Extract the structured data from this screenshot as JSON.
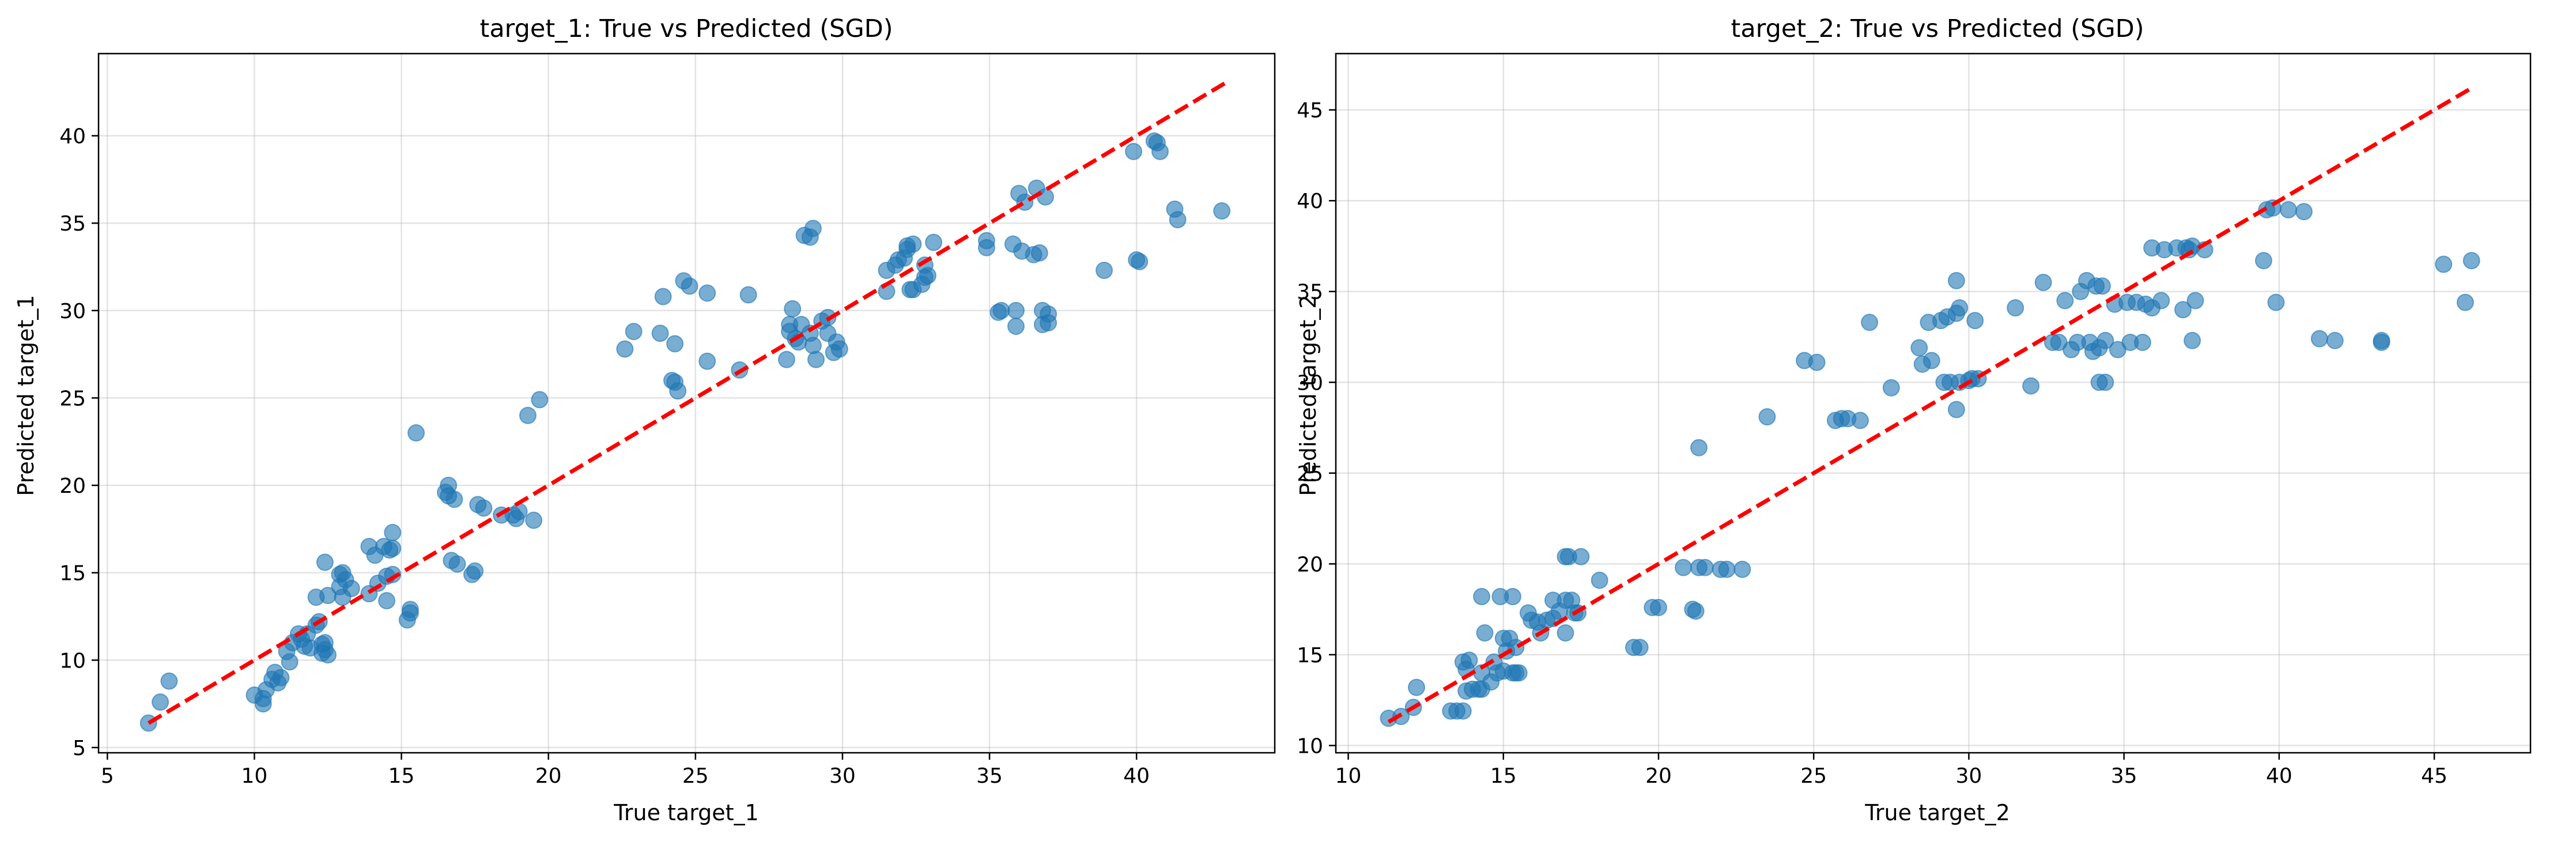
{
  "chart_data": [
    {
      "type": "scatter",
      "title": "target_1: True vs Predicted (SGD)",
      "xlabel": "True target_1",
      "ylabel": "Predicted target_1",
      "xlim": [
        4.7,
        44.7
      ],
      "ylim": [
        4.7,
        44.7
      ],
      "xticks": [
        5,
        10,
        15,
        20,
        25,
        30,
        35,
        40
      ],
      "yticks": [
        5,
        10,
        15,
        20,
        25,
        30,
        35,
        40
      ],
      "grid": true,
      "point_color": "#1f77b4",
      "line_color": "#ff0000",
      "reference_line": {
        "from": [
          6.4,
          6.4
        ],
        "to": [
          43.0,
          43.0
        ],
        "style": "dashed"
      },
      "points": [
        [
          6.4,
          6.4
        ],
        [
          6.8,
          7.6
        ],
        [
          7.1,
          8.8
        ],
        [
          10.0,
          8.0
        ],
        [
          10.3,
          7.5
        ],
        [
          10.3,
          7.8
        ],
        [
          10.4,
          8.3
        ],
        [
          10.6,
          8.9
        ],
        [
          10.7,
          9.3
        ],
        [
          10.8,
          8.7
        ],
        [
          10.9,
          9.0
        ],
        [
          11.1,
          10.5
        ],
        [
          11.2,
          9.9
        ],
        [
          11.3,
          11.0
        ],
        [
          11.5,
          11.5
        ],
        [
          11.6,
          11.2
        ],
        [
          11.7,
          10.8
        ],
        [
          11.8,
          11.5
        ],
        [
          11.9,
          10.7
        ],
        [
          12.1,
          12.0
        ],
        [
          12.1,
          13.6
        ],
        [
          12.2,
          12.2
        ],
        [
          12.3,
          10.9
        ],
        [
          12.3,
          10.4
        ],
        [
          12.4,
          10.6
        ],
        [
          12.4,
          11.0
        ],
        [
          12.4,
          15.6
        ],
        [
          12.5,
          10.3
        ],
        [
          12.5,
          13.7
        ],
        [
          12.9,
          14.9
        ],
        [
          12.9,
          14.2
        ],
        [
          13.0,
          13.6
        ],
        [
          13.0,
          15.0
        ],
        [
          13.1,
          14.6
        ],
        [
          13.3,
          14.1
        ],
        [
          13.9,
          13.8
        ],
        [
          13.9,
          16.5
        ],
        [
          14.1,
          16.0
        ],
        [
          14.2,
          14.4
        ],
        [
          14.4,
          16.5
        ],
        [
          14.5,
          14.8
        ],
        [
          14.5,
          13.4
        ],
        [
          14.6,
          16.3
        ],
        [
          14.7,
          16.4
        ],
        [
          14.7,
          14.9
        ],
        [
          14.7,
          17.3
        ],
        [
          15.2,
          12.3
        ],
        [
          15.3,
          12.7
        ],
        [
          15.3,
          12.9
        ],
        [
          15.5,
          23.0
        ],
        [
          16.5,
          19.6
        ],
        [
          16.6,
          19.4
        ],
        [
          16.6,
          20.0
        ],
        [
          16.7,
          15.7
        ],
        [
          16.8,
          19.2
        ],
        [
          16.9,
          15.5
        ],
        [
          17.4,
          14.9
        ],
        [
          17.5,
          15.1
        ],
        [
          17.6,
          18.9
        ],
        [
          17.8,
          18.7
        ],
        [
          18.4,
          18.3
        ],
        [
          18.8,
          18.3
        ],
        [
          18.9,
          18.1
        ],
        [
          19.0,
          18.5
        ],
        [
          19.3,
          24.0
        ],
        [
          19.5,
          18.0
        ],
        [
          19.7,
          24.9
        ],
        [
          22.6,
          27.8
        ],
        [
          22.9,
          28.8
        ],
        [
          23.8,
          28.7
        ],
        [
          23.9,
          30.8
        ],
        [
          24.2,
          26.0
        ],
        [
          24.3,
          25.9
        ],
        [
          24.3,
          28.1
        ],
        [
          24.4,
          25.4
        ],
        [
          24.6,
          31.7
        ],
        [
          24.8,
          31.4
        ],
        [
          25.4,
          31.0
        ],
        [
          25.4,
          27.1
        ],
        [
          26.5,
          26.6
        ],
        [
          26.8,
          30.9
        ],
        [
          28.1,
          27.2
        ],
        [
          28.2,
          29.2
        ],
        [
          28.2,
          28.8
        ],
        [
          28.3,
          30.1
        ],
        [
          28.4,
          28.4
        ],
        [
          28.5,
          28.2
        ],
        [
          28.6,
          29.2
        ],
        [
          28.7,
          34.3
        ],
        [
          28.9,
          28.7
        ],
        [
          28.9,
          34.2
        ],
        [
          29.0,
          28.0
        ],
        [
          29.0,
          34.7
        ],
        [
          29.1,
          27.2
        ],
        [
          29.3,
          29.4
        ],
        [
          29.5,
          29.6
        ],
        [
          29.5,
          28.7
        ],
        [
          29.7,
          27.6
        ],
        [
          29.8,
          28.2
        ],
        [
          29.9,
          27.8
        ],
        [
          31.5,
          31.1
        ],
        [
          31.5,
          32.3
        ],
        [
          31.8,
          32.6
        ],
        [
          31.9,
          32.9
        ],
        [
          32.1,
          33.0
        ],
        [
          32.2,
          33.7
        ],
        [
          32.2,
          33.5
        ],
        [
          32.3,
          31.2
        ],
        [
          32.4,
          31.2
        ],
        [
          32.4,
          33.8
        ],
        [
          32.7,
          31.5
        ],
        [
          32.8,
          31.9
        ],
        [
          32.8,
          32.6
        ],
        [
          32.9,
          32.0
        ],
        [
          33.1,
          33.9
        ],
        [
          34.9,
          33.6
        ],
        [
          34.9,
          34.0
        ],
        [
          35.3,
          29.9
        ],
        [
          35.4,
          30.0
        ],
        [
          35.8,
          33.8
        ],
        [
          35.9,
          29.1
        ],
        [
          35.9,
          30.0
        ],
        [
          36.0,
          36.7
        ],
        [
          36.1,
          33.4
        ],
        [
          36.2,
          36.2
        ],
        [
          36.5,
          33.2
        ],
        [
          36.6,
          37.0
        ],
        [
          36.7,
          33.3
        ],
        [
          36.8,
          29.2
        ],
        [
          36.8,
          30.0
        ],
        [
          36.9,
          36.5
        ],
        [
          37.0,
          29.3
        ],
        [
          37.0,
          29.8
        ],
        [
          38.9,
          32.3
        ],
        [
          39.9,
          39.1
        ],
        [
          40.0,
          32.9
        ],
        [
          40.1,
          32.8
        ],
        [
          40.6,
          39.7
        ],
        [
          40.7,
          39.6
        ],
        [
          40.8,
          39.1
        ],
        [
          41.3,
          35.8
        ],
        [
          41.4,
          35.2
        ],
        [
          42.9,
          35.7
        ]
      ]
    },
    {
      "type": "scatter",
      "title": "target_2: True vs Predicted (SGD)",
      "xlabel": "True target_2",
      "ylabel": "Predicted target_2",
      "xlim": [
        9.6,
        48.1
      ],
      "ylim": [
        9.6,
        48.1
      ],
      "xticks": [
        10,
        15,
        20,
        25,
        30,
        35,
        40,
        45
      ],
      "yticks": [
        10,
        15,
        20,
        25,
        30,
        35,
        40,
        45
      ],
      "grid": true,
      "point_color": "#1f77b4",
      "line_color": "#ff0000",
      "reference_line": {
        "from": [
          11.3,
          11.3
        ],
        "to": [
          46.2,
          46.2
        ],
        "style": "dashed"
      },
      "points": [
        [
          11.3,
          11.5
        ],
        [
          11.7,
          11.6
        ],
        [
          12.1,
          12.1
        ],
        [
          12.2,
          13.2
        ],
        [
          13.3,
          11.9
        ],
        [
          13.5,
          11.9
        ],
        [
          13.7,
          11.9
        ],
        [
          13.7,
          14.6
        ],
        [
          13.8,
          13.0
        ],
        [
          13.8,
          14.2
        ],
        [
          13.9,
          14.7
        ],
        [
          14.0,
          13.1
        ],
        [
          14.2,
          13.1
        ],
        [
          14.3,
          18.2
        ],
        [
          14.3,
          13.1
        ],
        [
          14.3,
          14.0
        ],
        [
          14.4,
          16.2
        ],
        [
          14.6,
          13.5
        ],
        [
          14.7,
          14.6
        ],
        [
          14.8,
          14.0
        ],
        [
          14.9,
          18.2
        ],
        [
          15.0,
          15.9
        ],
        [
          15.0,
          14.1
        ],
        [
          15.1,
          15.2
        ],
        [
          15.2,
          15.9
        ],
        [
          15.3,
          14.0
        ],
        [
          15.3,
          18.2
        ],
        [
          15.4,
          14.0
        ],
        [
          15.4,
          15.4
        ],
        [
          15.5,
          14.0
        ],
        [
          15.8,
          17.3
        ],
        [
          15.9,
          16.9
        ],
        [
          16.1,
          16.8
        ],
        [
          16.2,
          16.2
        ],
        [
          16.4,
          16.9
        ],
        [
          16.6,
          17.0
        ],
        [
          16.6,
          18.0
        ],
        [
          16.8,
          17.4
        ],
        [
          17.0,
          20.4
        ],
        [
          17.0,
          18.0
        ],
        [
          17.0,
          16.2
        ],
        [
          17.1,
          20.4
        ],
        [
          17.2,
          18.0
        ],
        [
          17.3,
          17.3
        ],
        [
          17.4,
          17.3
        ],
        [
          17.5,
          20.4
        ],
        [
          18.1,
          19.1
        ],
        [
          19.2,
          15.4
        ],
        [
          19.4,
          15.4
        ],
        [
          19.8,
          17.6
        ],
        [
          20.0,
          17.6
        ],
        [
          20.8,
          19.8
        ],
        [
          21.1,
          17.5
        ],
        [
          21.2,
          17.4
        ],
        [
          21.3,
          26.4
        ],
        [
          21.3,
          19.8
        ],
        [
          21.5,
          19.8
        ],
        [
          22.0,
          19.7
        ],
        [
          22.2,
          19.7
        ],
        [
          22.7,
          19.7
        ],
        [
          23.5,
          28.1
        ],
        [
          24.7,
          31.2
        ],
        [
          25.1,
          31.1
        ],
        [
          25.7,
          27.9
        ],
        [
          25.9,
          28.0
        ],
        [
          26.1,
          28.0
        ],
        [
          26.5,
          27.9
        ],
        [
          26.8,
          33.3
        ],
        [
          27.5,
          29.7
        ],
        [
          28.4,
          31.9
        ],
        [
          28.5,
          31.0
        ],
        [
          28.7,
          33.3
        ],
        [
          28.8,
          31.2
        ],
        [
          29.1,
          33.4
        ],
        [
          29.2,
          30.0
        ],
        [
          29.3,
          33.6
        ],
        [
          29.4,
          30.0
        ],
        [
          29.6,
          28.5
        ],
        [
          29.6,
          35.6
        ],
        [
          29.6,
          33.8
        ],
        [
          29.7,
          30.0
        ],
        [
          29.7,
          34.1
        ],
        [
          30.0,
          30.1
        ],
        [
          30.1,
          30.2
        ],
        [
          30.2,
          33.4
        ],
        [
          30.3,
          30.2
        ],
        [
          31.5,
          34.1
        ],
        [
          32.0,
          29.8
        ],
        [
          32.4,
          35.5
        ],
        [
          32.7,
          32.2
        ],
        [
          32.9,
          32.2
        ],
        [
          33.1,
          34.5
        ],
        [
          33.3,
          31.8
        ],
        [
          33.5,
          32.2
        ],
        [
          33.6,
          35.0
        ],
        [
          33.8,
          35.6
        ],
        [
          33.9,
          32.2
        ],
        [
          34.0,
          31.7
        ],
        [
          34.1,
          35.3
        ],
        [
          34.2,
          30.0
        ],
        [
          34.2,
          31.9
        ],
        [
          34.3,
          35.3
        ],
        [
          34.4,
          32.3
        ],
        [
          34.4,
          30.0
        ],
        [
          34.7,
          34.3
        ],
        [
          34.8,
          31.8
        ],
        [
          35.1,
          34.4
        ],
        [
          35.2,
          32.2
        ],
        [
          35.4,
          34.4
        ],
        [
          35.6,
          32.2
        ],
        [
          35.7,
          34.3
        ],
        [
          35.9,
          37.4
        ],
        [
          35.9,
          34.1
        ],
        [
          36.2,
          34.5
        ],
        [
          36.3,
          37.3
        ],
        [
          36.7,
          37.4
        ],
        [
          36.9,
          34.0
        ],
        [
          37.0,
          37.4
        ],
        [
          37.1,
          37.3
        ],
        [
          37.2,
          32.3
        ],
        [
          37.2,
          37.5
        ],
        [
          37.3,
          34.5
        ],
        [
          37.6,
          37.3
        ],
        [
          39.5,
          36.7
        ],
        [
          39.6,
          39.5
        ],
        [
          39.8,
          39.6
        ],
        [
          39.9,
          34.4
        ],
        [
          40.3,
          39.5
        ],
        [
          40.8,
          39.4
        ],
        [
          41.3,
          32.4
        ],
        [
          41.8,
          32.3
        ],
        [
          43.3,
          32.3
        ],
        [
          43.3,
          32.2
        ],
        [
          45.3,
          36.5
        ],
        [
          46.0,
          34.4
        ],
        [
          46.2,
          36.7
        ]
      ]
    }
  ]
}
